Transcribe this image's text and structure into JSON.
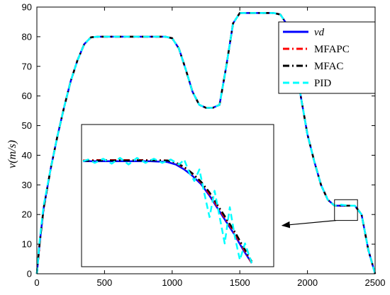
{
  "chart_data": {
    "type": "line",
    "ylabel": "v(m/s)",
    "xlim": [
      0,
      2500
    ],
    "ylim": [
      0,
      90
    ],
    "xticks": [
      0,
      500,
      1000,
      1500,
      2000,
      2500
    ],
    "yticks": [
      0,
      10,
      20,
      30,
      40,
      50,
      60,
      70,
      80,
      90
    ],
    "grid": false,
    "legend_position": "top-right",
    "colors": {
      "vd": "#0000ff",
      "MFAPC": "#ff0000",
      "MFAC": "#000000",
      "PID": "#00ffff"
    },
    "series": [
      {
        "name": "vd",
        "x": [
          0,
          20,
          50,
          100,
          150,
          200,
          250,
          300,
          350,
          400,
          450,
          500,
          600,
          700,
          800,
          900,
          950,
          1000,
          1050,
          1100,
          1150,
          1200,
          1250,
          1300,
          1350,
          1400,
          1450,
          1500,
          1550,
          1600,
          1650,
          1700,
          1750,
          1800,
          1850,
          1900,
          1950,
          2000,
          2050,
          2100,
          2150,
          2200,
          2250,
          2300,
          2350,
          2400,
          2450,
          2500
        ],
        "values": [
          0,
          10,
          22,
          35,
          46,
          56,
          65,
          72,
          77.5,
          79.8,
          80,
          80,
          80,
          80,
          80,
          80,
          80,
          79.5,
          76,
          69,
          61.5,
          57,
          56,
          56,
          57,
          70,
          84.5,
          88,
          88,
          88,
          88,
          88,
          88,
          87.5,
          84,
          75,
          60,
          47,
          38,
          30,
          25,
          23,
          23,
          23,
          23,
          20,
          8,
          0
        ]
      },
      {
        "name": "MFAPC",
        "x": [
          0,
          20,
          50,
          100,
          150,
          200,
          250,
          300,
          350,
          400,
          450,
          500,
          600,
          700,
          800,
          900,
          950,
          1000,
          1050,
          1100,
          1150,
          1200,
          1250,
          1300,
          1350,
          1400,
          1450,
          1500,
          1550,
          1600,
          1650,
          1700,
          1750,
          1800,
          1850,
          1900,
          1950,
          2000,
          2050,
          2100,
          2150,
          2200,
          2250,
          2300,
          2350,
          2400,
          2450,
          2500
        ],
        "values": [
          0,
          10,
          22,
          35,
          46,
          56,
          65,
          72,
          77.5,
          79.8,
          80,
          80,
          80,
          80,
          80,
          80,
          80,
          79.5,
          76,
          69,
          61.5,
          57,
          56,
          56,
          57,
          70,
          84.5,
          88,
          88,
          88,
          88,
          88,
          88,
          87.5,
          84,
          75,
          60,
          47,
          38,
          30,
          25,
          23,
          23,
          23,
          23,
          20,
          8,
          0
        ]
      },
      {
        "name": "MFAC",
        "x": [
          0,
          20,
          50,
          100,
          150,
          200,
          250,
          300,
          350,
          400,
          450,
          500,
          600,
          700,
          800,
          900,
          950,
          1000,
          1050,
          1100,
          1150,
          1200,
          1250,
          1300,
          1350,
          1400,
          1450,
          1500,
          1550,
          1600,
          1650,
          1700,
          1750,
          1800,
          1850,
          1900,
          1950,
          2000,
          2050,
          2100,
          2150,
          2200,
          2250,
          2300,
          2350,
          2400,
          2450,
          2500
        ],
        "values": [
          0,
          10,
          22,
          35,
          46,
          56,
          65,
          72,
          77.5,
          79.8,
          80,
          80,
          80,
          80,
          80,
          80,
          80,
          79.5,
          76,
          69,
          61.5,
          57,
          56,
          56,
          57,
          70,
          84.5,
          88,
          88,
          88,
          88,
          88,
          88,
          87.5,
          84,
          75,
          60,
          47,
          38,
          30,
          25,
          23,
          23,
          23,
          23,
          20,
          8,
          0
        ]
      },
      {
        "name": "PID",
        "x": [
          0,
          20,
          50,
          100,
          150,
          200,
          250,
          300,
          350,
          400,
          450,
          500,
          600,
          700,
          800,
          900,
          950,
          1000,
          1050,
          1100,
          1150,
          1200,
          1250,
          1300,
          1350,
          1400,
          1450,
          1500,
          1550,
          1600,
          1650,
          1700,
          1750,
          1800,
          1850,
          1900,
          1950,
          2000,
          2050,
          2100,
          2150,
          2200,
          2250,
          2300,
          2350,
          2400,
          2450,
          2500
        ],
        "values": [
          0,
          11,
          23,
          35,
          46,
          56,
          65,
          72,
          77.5,
          79.8,
          80,
          80,
          80,
          80,
          80,
          80,
          80,
          79.5,
          76,
          69,
          61.5,
          57,
          56,
          56,
          57,
          70,
          84.5,
          88,
          88,
          88,
          88,
          88,
          88,
          87.5,
          84,
          75,
          60,
          47,
          38,
          30,
          25,
          23,
          23.3,
          23,
          23,
          20,
          8,
          0
        ]
      }
    ],
    "inset": {
      "zoom_region_x": [
        2200,
        2370
      ],
      "zoom_region_y": [
        18,
        25
      ],
      "series": [
        {
          "name": "vd",
          "x": [
            0,
            0.1,
            0.2,
            0.3,
            0.4,
            0.5,
            0.55,
            0.6,
            0.65,
            0.7,
            0.75,
            0.8,
            0.85,
            0.9,
            0.95,
            1.0
          ],
          "values": [
            0.62,
            0.62,
            0.62,
            0.62,
            0.62,
            0.615,
            0.6,
            0.57,
            0.53,
            0.48,
            0.41,
            0.33,
            0.25,
            0.17,
            0.08,
            0.0
          ]
        },
        {
          "name": "MFAPC",
          "x": [
            0,
            0.1,
            0.2,
            0.3,
            0.4,
            0.5,
            0.55,
            0.6,
            0.65,
            0.7,
            0.75,
            0.8,
            0.85,
            0.9,
            0.95,
            1.0
          ],
          "values": [
            0.625,
            0.627,
            0.627,
            0.627,
            0.627,
            0.625,
            0.61,
            0.58,
            0.54,
            0.49,
            0.42,
            0.34,
            0.26,
            0.18,
            0.09,
            0.0
          ]
        },
        {
          "name": "MFAC",
          "x": [
            0,
            0.1,
            0.2,
            0.3,
            0.4,
            0.5,
            0.55,
            0.6,
            0.65,
            0.7,
            0.75,
            0.8,
            0.85,
            0.9,
            0.95,
            1.0
          ],
          "values": [
            0.622,
            0.624,
            0.624,
            0.624,
            0.625,
            0.624,
            0.612,
            0.585,
            0.545,
            0.495,
            0.43,
            0.35,
            0.27,
            0.19,
            0.1,
            0.01
          ]
        },
        {
          "name": "PID",
          "x": [
            0,
            0.03,
            0.07,
            0.12,
            0.17,
            0.22,
            0.27,
            0.32,
            0.37,
            0.42,
            0.47,
            0.52,
            0.57,
            0.6,
            0.63,
            0.66,
            0.69,
            0.72,
            0.75,
            0.78,
            0.81,
            0.84,
            0.87,
            0.9,
            0.93,
            0.96,
            1.0
          ],
          "values": [
            0.62,
            0.63,
            0.61,
            0.635,
            0.605,
            0.64,
            0.6,
            0.64,
            0.61,
            0.635,
            0.61,
            0.63,
            0.6,
            0.63,
            0.55,
            0.5,
            0.57,
            0.42,
            0.28,
            0.44,
            0.28,
            0.12,
            0.34,
            0.16,
            0.02,
            0.12,
            0.0
          ]
        }
      ]
    }
  }
}
